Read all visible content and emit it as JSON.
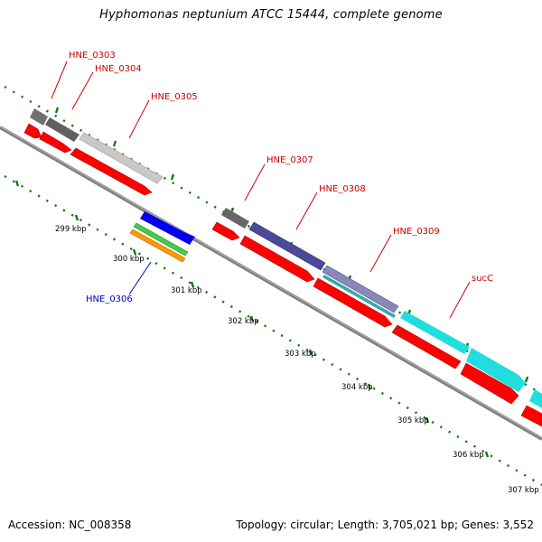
{
  "title": "Hyphomonas neptunium ATCC 15444, complete genome",
  "footer": {
    "accession": "Accession: NC_008358",
    "summary": "Topology: circular; Length: 3,705,021 bp; Genes: 3,552"
  },
  "ticks": [
    "299 kbp",
    "300 kbp",
    "301 kbp",
    "302 kbp",
    "303 kbp",
    "304 kbp",
    "305 kbp",
    "306 kbp",
    "307 kbp"
  ],
  "gene_labels": {
    "HNE_0303": "HNE_0303",
    "HNE_0304": "HNE_0304",
    "HNE_0305": "HNE_0305",
    "HNE_0306": "HNE_0306",
    "HNE_0307": "HNE_0307",
    "HNE_0308": "HNE_0308",
    "HNE_0309": "HNE_0309",
    "sucC": "sucC"
  },
  "colors": {
    "forward_label": "#cc0000",
    "reverse_label": "#0000cc",
    "cds": "#ff0000",
    "backbone": "#808080",
    "tick_dots": "#117711",
    "HNE_0303": "#707070",
    "HNE_0304": "#606060",
    "HNE_0305": "#c8c8c8",
    "HNE_0306_blue": "#0000ee",
    "HNE_0306_green": "#44cc44",
    "HNE_0306_orange": "#ff9900",
    "HNE_0307": "#666666",
    "HNE_0308": "#4a4a99",
    "HNE_0309": "#8888bb",
    "HNE_0309_inner": "#33aaaa",
    "sucC": "#22dddd"
  }
}
